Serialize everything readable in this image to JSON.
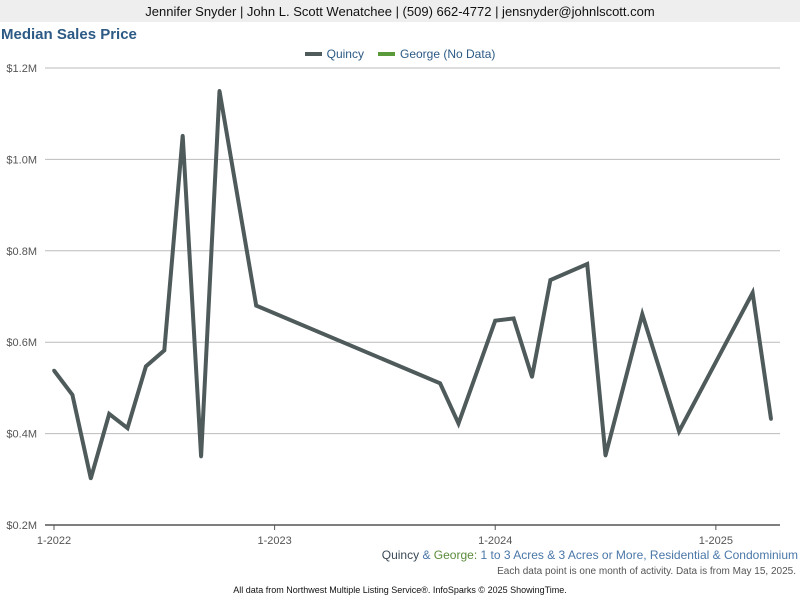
{
  "header": {
    "text": "Jennifer Snyder | John L. Scott Wenatchee | (509) 662-4772 | jensnyder@johnlscott.com"
  },
  "legend": {
    "items": [
      {
        "label": "Quincy",
        "color": "#4f5a5a"
      },
      {
        "label": "George (No Data)",
        "color": "#5a9a3a"
      }
    ]
  },
  "subtitle": {
    "place1": "Quincy",
    "amp1": "&",
    "place2": "George",
    "colon": ":",
    "filters": "1 to 3 Acres & 3 Acres or More, Residential & Condominium"
  },
  "note": "Each data point is one month of activity. Data is from May 15, 2025.",
  "footer": "All data from Northwest Multiple Listing Service®. InfoSparks © 2025 ShowingTime.",
  "chart_data": {
    "type": "line",
    "title": "Median Sales Price",
    "ylim": [
      200000,
      1200000
    ],
    "y_ticks": [
      {
        "value": 200000,
        "label": "$0.2M"
      },
      {
        "value": 400000,
        "label": "$0.4M"
      },
      {
        "value": 600000,
        "label": "$0.6M"
      },
      {
        "value": 800000,
        "label": "$0.8M"
      },
      {
        "value": 1000000,
        "label": "$1.0M"
      },
      {
        "value": 1200000,
        "label": "$1.2M"
      }
    ],
    "xlim": [
      "2022-01",
      "2025-04"
    ],
    "x_ticks": [
      {
        "value": "2022-01",
        "label": "1-2022"
      },
      {
        "value": "2023-01",
        "label": "1-2023"
      },
      {
        "value": "2024-01",
        "label": "1-2024"
      },
      {
        "value": "2025-01",
        "label": "1-2025"
      }
    ],
    "grid": true,
    "legend_position": "top-center",
    "series": [
      {
        "name": "Quincy",
        "color": "#4f5a5a",
        "points": [
          {
            "x": "2022-01",
            "y": 538000
          },
          {
            "x": "2022-02",
            "y": 485000
          },
          {
            "x": "2022-03",
            "y": 302000
          },
          {
            "x": "2022-04",
            "y": 443000
          },
          {
            "x": "2022-05",
            "y": 412000
          },
          {
            "x": "2022-06",
            "y": 547000
          },
          {
            "x": "2022-07",
            "y": 582000
          },
          {
            "x": "2022-08",
            "y": 1052000
          },
          {
            "x": "2022-09",
            "y": 350000
          },
          {
            "x": "2022-10",
            "y": 1150000
          },
          {
            "x": "2022-12",
            "y": 680000
          },
          {
            "x": "2023-10",
            "y": 510000
          },
          {
            "x": "2023-11",
            "y": 422000
          },
          {
            "x": "2024-01",
            "y": 647000
          },
          {
            "x": "2024-02",
            "y": 652000
          },
          {
            "x": "2024-03",
            "y": 524000
          },
          {
            "x": "2024-04",
            "y": 736000
          },
          {
            "x": "2024-06",
            "y": 771000
          },
          {
            "x": "2024-07",
            "y": 352000
          },
          {
            "x": "2024-09",
            "y": 661000
          },
          {
            "x": "2024-11",
            "y": 405000
          },
          {
            "x": "2025-03",
            "y": 708000
          },
          {
            "x": "2025-04",
            "y": 432000
          }
        ]
      },
      {
        "name": "George (No Data)",
        "color": "#5a9a3a",
        "points": []
      }
    ]
  }
}
